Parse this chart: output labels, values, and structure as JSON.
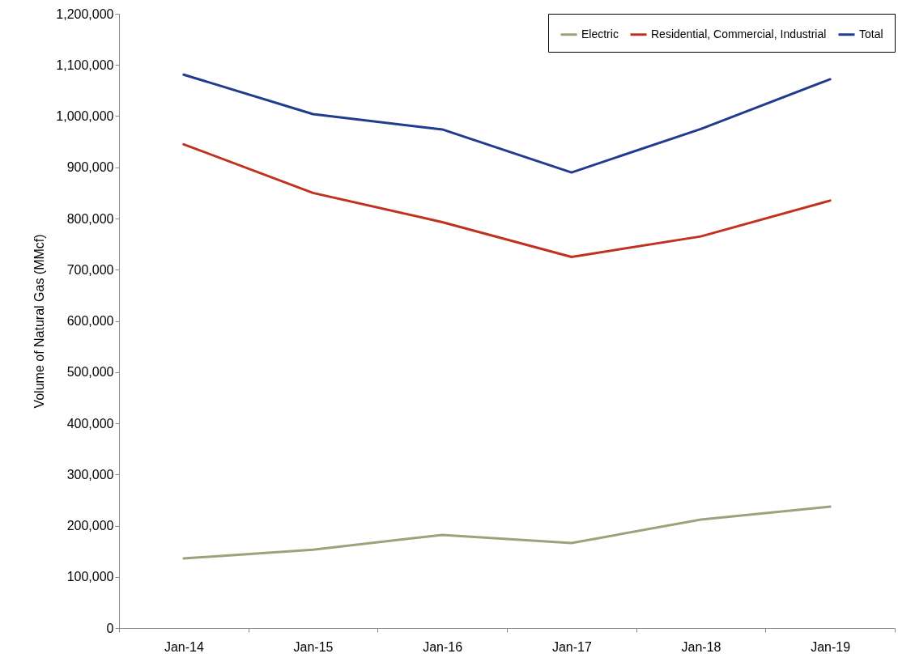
{
  "chart_data": {
    "type": "line",
    "ylabel": "Volume of Natural Gas (MMcf)",
    "categories": [
      "Jan-14",
      "Jan-15",
      "Jan-16",
      "Jan-17",
      "Jan-18",
      "Jan-19"
    ],
    "series": [
      {
        "name": "Electric",
        "color": "#9aa47a",
        "values": [
          136000,
          153000,
          182000,
          166000,
          212000,
          237000
        ]
      },
      {
        "name": "Residential, Commercial, Industrial",
        "color": "#c0311f",
        "values": [
          945000,
          850000,
          793000,
          725000,
          765000,
          835000
        ]
      },
      {
        "name": "Total",
        "color": "#1f3c8f",
        "values": [
          1081000,
          1004000,
          974000,
          890000,
          975000,
          1072000
        ]
      }
    ],
    "ylim": [
      0,
      1200000
    ],
    "yticks": [
      0,
      {
        "value": 100000,
        "label": "100,000"
      },
      {
        "value": 200000,
        "label": "200,000"
      },
      {
        "value": 300000,
        "label": "300,000"
      },
      {
        "value": 400000,
        "label": "400,000"
      },
      {
        "value": 500000,
        "label": "500,000"
      },
      {
        "value": 600000,
        "label": "600,000"
      },
      {
        "value": 700000,
        "label": "700,000"
      },
      {
        "value": 800000,
        "label": "800,000"
      },
      {
        "value": 900000,
        "label": "900,000"
      },
      {
        "value": 1000000,
        "label": "1,000,000"
      },
      {
        "value": 1100000,
        "label": "1,100,000"
      },
      {
        "value": 1200000,
        "label": "1,200,000"
      }
    ],
    "grid": false,
    "legend": "top right",
    "marker": "none",
    "line_style": "solid"
  }
}
